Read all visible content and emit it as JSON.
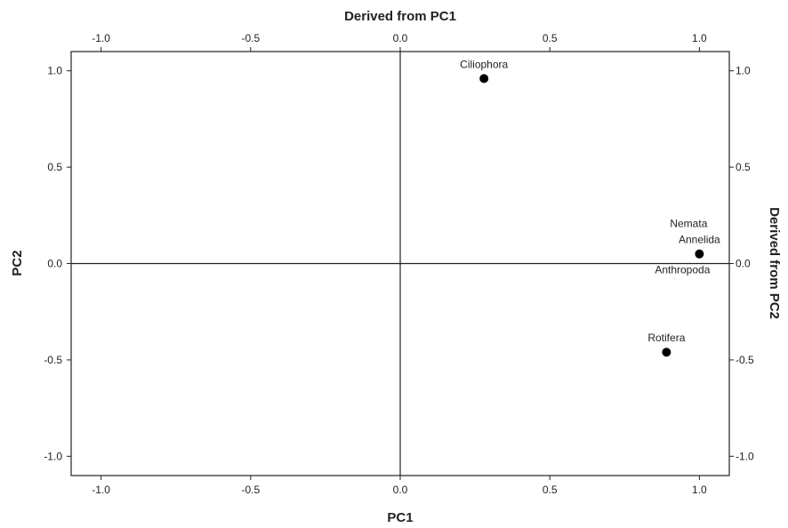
{
  "chart_data": {
    "type": "scatter",
    "xlabel": "PC1",
    "ylabel": "PC2",
    "x2label": "Derived from PC1",
    "y2label": "Derived from PC2",
    "xlim": [
      -1.1,
      1.1
    ],
    "ylim": [
      -1.1,
      1.1
    ],
    "xticks": [
      -1.0,
      -0.5,
      0.0,
      0.5,
      1.0
    ],
    "yticks": [
      -1.0,
      -0.5,
      0.0,
      0.5,
      1.0
    ],
    "x_tick_labels": [
      "-1.0",
      "-0.5",
      "0.0",
      "0.5",
      "1.0"
    ],
    "y_tick_labels": [
      "-1.0",
      "-0.5",
      "0.0",
      "0.5",
      "1.0"
    ],
    "reference_lines": {
      "x": 0.0,
      "y": 0.0
    },
    "grid": false,
    "marker_color": "#000000",
    "points": [
      {
        "label": "Ciliophora",
        "x": 0.28,
        "y": 0.96,
        "label_pos": "above"
      },
      {
        "label": "Rotifera",
        "x": 0.89,
        "y": -0.46,
        "label_pos": "above"
      },
      {
        "label": "Nemata",
        "x": 1.0,
        "y": 0.05,
        "label_pos": "above-far"
      },
      {
        "label": "Annelida",
        "x": 1.0,
        "y": 0.05,
        "label_pos": "above"
      },
      {
        "label": "Anthropoda",
        "x": 1.0,
        "y": 0.05,
        "label_pos": "below-left"
      }
    ]
  }
}
